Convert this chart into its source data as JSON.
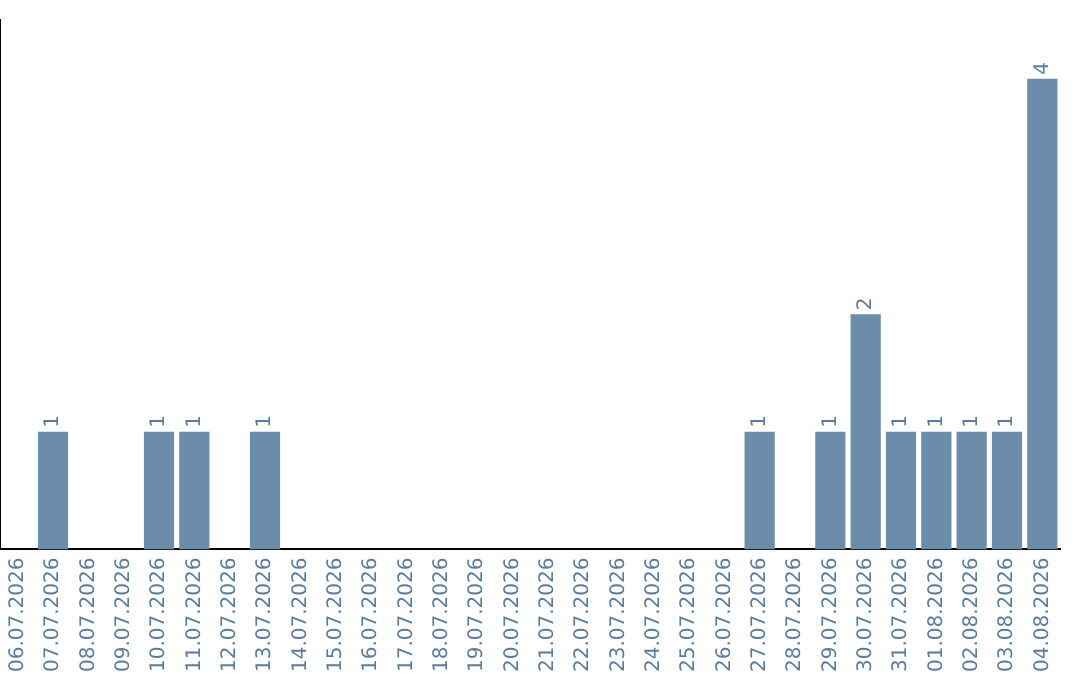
{
  "chart_data": {
    "type": "bar",
    "categories": [
      "06.07.2026",
      "07.07.2026",
      "08.07.2026",
      "09.07.2026",
      "10.07.2026",
      "11.07.2026",
      "12.07.2026",
      "13.07.2026",
      "14.07.2026",
      "15.07.2026",
      "16.07.2026",
      "17.07.2026",
      "18.07.2026",
      "19.07.2026",
      "20.07.2026",
      "21.07.2026",
      "22.07.2026",
      "23.07.2026",
      "24.07.2026",
      "25.07.2026",
      "26.07.2026",
      "27.07.2026",
      "28.07.2026",
      "29.07.2026",
      "30.07.2026",
      "31.07.2026",
      "01.08.2026",
      "02.08.2026",
      "03.08.2026",
      "04.08.2026"
    ],
    "values": [
      0,
      1,
      0,
      0,
      1,
      1,
      0,
      1,
      0,
      0,
      0,
      0,
      0,
      0,
      0,
      0,
      0,
      0,
      0,
      0,
      0,
      1,
      0,
      1,
      2,
      1,
      1,
      1,
      1,
      4
    ],
    "value_labels": [
      null,
      "1",
      null,
      null,
      "1",
      "1",
      null,
      "1",
      null,
      null,
      null,
      null,
      null,
      null,
      null,
      null,
      null,
      null,
      null,
      null,
      null,
      "1",
      null,
      "1",
      "2",
      "1",
      "1",
      "1",
      "1",
      "4"
    ],
    "color": "#6b8cab",
    "grid": false,
    "legend": false,
    "tick_labels": "x"
  }
}
